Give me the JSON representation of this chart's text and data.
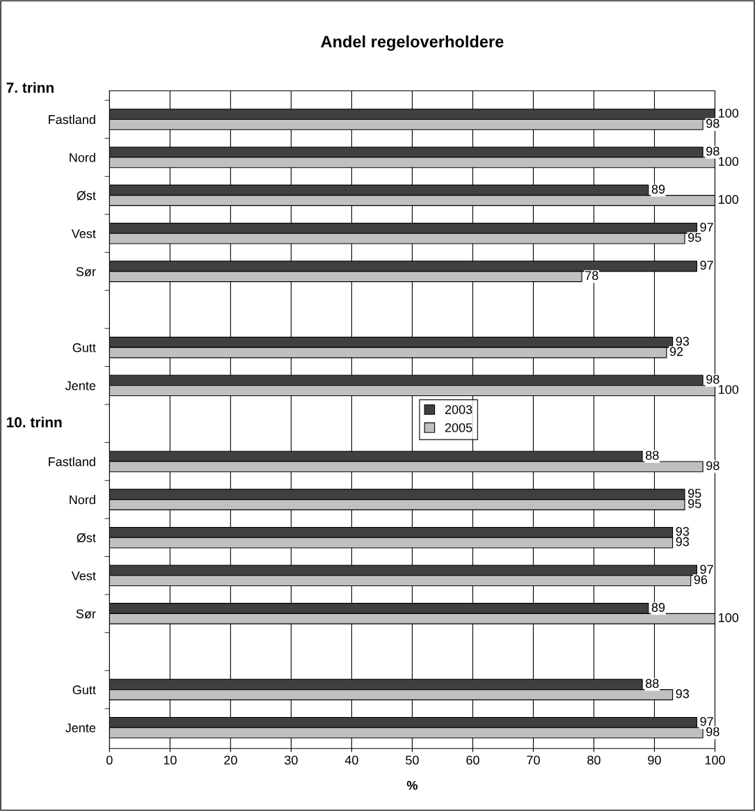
{
  "chart_data": {
    "type": "bar",
    "orientation": "horizontal",
    "title": "Andel regeloverholdere",
    "xlabel": "%",
    "categories": [
      "Fastland",
      "Nord",
      "Øst",
      "Vest",
      "Sør",
      null,
      "Gutt",
      "Jente",
      null,
      "Fastland",
      "Nord",
      "Øst",
      "Vest",
      "Sør",
      null,
      "Gutt",
      "Jente"
    ],
    "series": [
      {
        "name": "2003",
        "color": "#404040",
        "values": [
          100,
          98,
          89,
          97,
          97,
          null,
          93,
          98,
          null,
          88,
          95,
          93,
          97,
          89,
          null,
          88,
          97
        ]
      },
      {
        "name": "2005",
        "color": "#c0c0c0",
        "values": [
          98,
          100,
          100,
          95,
          78,
          null,
          92,
          100,
          null,
          98,
          95,
          93,
          96,
          100,
          null,
          93,
          98
        ]
      }
    ],
    "annotations": [
      "7. trinn",
      "10. trinn"
    ],
    "xlim": [
      0,
      100
    ],
    "xticks": [
      0,
      10,
      20,
      30,
      40,
      50,
      60,
      70,
      80,
      90,
      100
    ],
    "grid": "x",
    "legend": "center",
    "data_labels": true
  }
}
